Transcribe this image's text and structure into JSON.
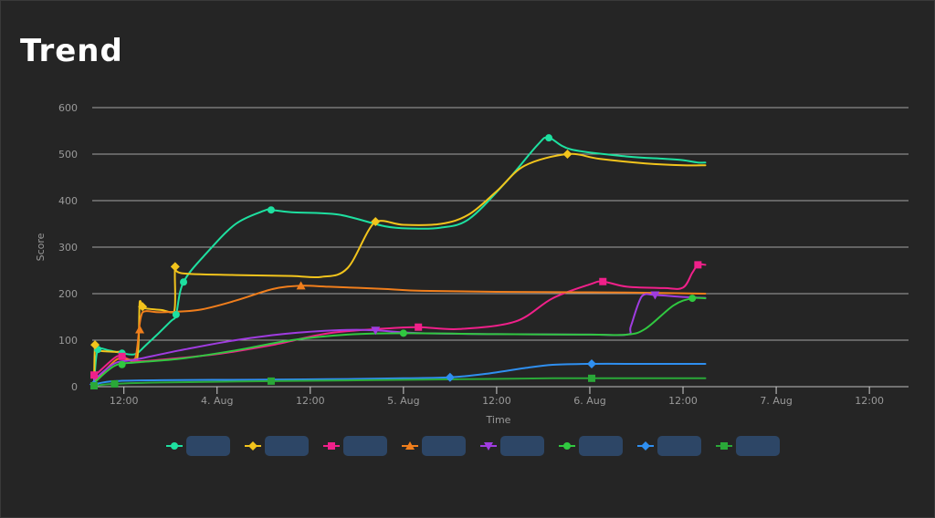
{
  "page": {
    "title": "Trend"
  },
  "chart_data": {
    "type": "line",
    "title": "Trend",
    "xlabel": "Time",
    "ylabel": "Score",
    "ylim": [
      0,
      600
    ],
    "yticks": [
      0,
      100,
      200,
      300,
      400,
      500,
      600
    ],
    "xlim": [
      3.33,
      7.71
    ],
    "xticks": [
      {
        "x": 3.5,
        "label": "12:00"
      },
      {
        "x": 4.0,
        "label": "4. Aug"
      },
      {
        "x": 4.5,
        "label": "12:00"
      },
      {
        "x": 5.0,
        "label": "5. Aug"
      },
      {
        "x": 5.5,
        "label": "12:00"
      },
      {
        "x": 6.0,
        "label": "6. Aug"
      },
      {
        "x": 6.5,
        "label": "12:00"
      },
      {
        "x": 7.0,
        "label": "7. Aug"
      },
      {
        "x": 7.5,
        "label": "12:00"
      }
    ],
    "grid": true,
    "legend_position": "bottom",
    "series": [
      {
        "color": "#1ee0a0",
        "marker": "circle",
        "points": [
          [
            3.34,
            5
          ],
          [
            3.36,
            80
          ],
          [
            3.42,
            78
          ],
          [
            3.49,
            72
          ],
          [
            3.56,
            70
          ],
          [
            3.62,
            90
          ],
          [
            3.75,
            140
          ],
          [
            3.78,
            155
          ],
          [
            3.82,
            225
          ],
          [
            3.95,
            290
          ],
          [
            4.1,
            350
          ],
          [
            4.25,
            378
          ],
          [
            4.29,
            380
          ],
          [
            4.4,
            375
          ],
          [
            4.65,
            370
          ],
          [
            4.9,
            345
          ],
          [
            5.05,
            340
          ],
          [
            5.2,
            342
          ],
          [
            5.35,
            360
          ],
          [
            5.55,
            440
          ],
          [
            5.72,
            520
          ],
          [
            5.78,
            535
          ],
          [
            5.9,
            510
          ],
          [
            6.2,
            495
          ],
          [
            6.4,
            490
          ],
          [
            6.5,
            487
          ],
          [
            6.58,
            482
          ],
          [
            6.62,
            482
          ]
        ],
        "marker_x": [
          3.36,
          3.49,
          3.78,
          3.82,
          4.29,
          5.78
        ]
      },
      {
        "color": "#f2c41c",
        "marker": "diamond",
        "points": [
          [
            3.34,
            5
          ],
          [
            3.345,
            90
          ],
          [
            3.36,
            78
          ],
          [
            3.45,
            75
          ],
          [
            3.49,
            74
          ],
          [
            3.5,
            60
          ],
          [
            3.57,
            58
          ],
          [
            3.585,
            183
          ],
          [
            3.6,
            172
          ],
          [
            3.62,
            168
          ],
          [
            3.7,
            165
          ],
          [
            3.77,
            162
          ],
          [
            3.775,
            258
          ],
          [
            3.81,
            244
          ],
          [
            4.1,
            240
          ],
          [
            4.4,
            238
          ],
          [
            4.56,
            236
          ],
          [
            4.7,
            255
          ],
          [
            4.85,
            355
          ],
          [
            5.0,
            348
          ],
          [
            5.2,
            350
          ],
          [
            5.35,
            370
          ],
          [
            5.5,
            420
          ],
          [
            5.65,
            475
          ],
          [
            5.88,
            500
          ],
          [
            6.05,
            490
          ],
          [
            6.3,
            480
          ],
          [
            6.5,
            476
          ],
          [
            6.62,
            476
          ]
        ],
        "marker_x": [
          3.345,
          3.6,
          3.775,
          4.85,
          5.88
        ]
      },
      {
        "color": "#f0208a",
        "marker": "square",
        "points": [
          [
            3.34,
            25
          ],
          [
            3.36,
            30
          ],
          [
            3.45,
            62
          ],
          [
            3.49,
            65
          ],
          [
            3.56,
            55
          ],
          [
            3.7,
            58
          ],
          [
            4.0,
            70
          ],
          [
            4.3,
            90
          ],
          [
            4.6,
            115
          ],
          [
            4.9,
            125
          ],
          [
            5.08,
            128
          ],
          [
            5.3,
            124
          ],
          [
            5.6,
            140
          ],
          [
            5.8,
            190
          ],
          [
            6.0,
            220
          ],
          [
            6.07,
            226
          ],
          [
            6.2,
            215
          ],
          [
            6.4,
            212
          ],
          [
            6.5,
            213
          ],
          [
            6.55,
            245
          ],
          [
            6.58,
            262
          ],
          [
            6.62,
            262
          ]
        ],
        "marker_x": [
          3.34,
          3.49,
          5.08,
          6.07,
          6.58
        ]
      },
      {
        "color": "#f07e1c",
        "marker": "triangle",
        "points": [
          [
            3.34,
            10
          ],
          [
            3.45,
            55
          ],
          [
            3.49,
            60
          ],
          [
            3.56,
            60
          ],
          [
            3.6,
            160
          ],
          [
            3.7,
            160
          ],
          [
            3.9,
            165
          ],
          [
            4.1,
            185
          ],
          [
            4.3,
            210
          ],
          [
            4.45,
            217
          ],
          [
            4.6,
            215
          ],
          [
            4.9,
            210
          ],
          [
            5.1,
            206
          ],
          [
            5.5,
            204
          ],
          [
            6.0,
            203
          ],
          [
            6.3,
            202
          ],
          [
            6.62,
            200
          ]
        ],
        "marker_x": [
          3.585,
          4.45
        ]
      },
      {
        "color": "#a03ce0",
        "marker": "triangle-down",
        "points": [
          [
            3.34,
            15
          ],
          [
            3.45,
            50
          ],
          [
            3.56,
            58
          ],
          [
            3.8,
            78
          ],
          [
            4.1,
            100
          ],
          [
            4.4,
            115
          ],
          [
            4.7,
            122
          ],
          [
            4.85,
            121
          ],
          [
            5.1,
            115
          ],
          [
            5.5,
            113
          ],
          [
            6.0,
            112
          ],
          [
            6.2,
            112
          ],
          [
            6.22,
            130
          ],
          [
            6.28,
            195
          ],
          [
            6.35,
            197
          ],
          [
            6.5,
            193
          ],
          [
            6.62,
            191
          ]
        ],
        "marker_x": [
          4.85,
          6.35
        ]
      },
      {
        "color": "#30c840",
        "marker": "circle",
        "points": [
          [
            3.34,
            8
          ],
          [
            3.45,
            45
          ],
          [
            3.56,
            52
          ],
          [
            3.8,
            60
          ],
          [
            4.1,
            78
          ],
          [
            4.4,
            100
          ],
          [
            4.7,
            112
          ],
          [
            5.0,
            115
          ],
          [
            5.5,
            113
          ],
          [
            6.0,
            112
          ],
          [
            6.2,
            112
          ],
          [
            6.3,
            125
          ],
          [
            6.45,
            175
          ],
          [
            6.55,
            190
          ],
          [
            6.62,
            190
          ]
        ],
        "marker_x": [
          3.49,
          5.0,
          6.55
        ]
      },
      {
        "color": "#2f8ff0",
        "marker": "diamond",
        "points": [
          [
            3.34,
            5
          ],
          [
            3.45,
            12
          ],
          [
            3.7,
            14
          ],
          [
            4.2,
            15
          ],
          [
            4.6,
            16
          ],
          [
            5.0,
            18
          ],
          [
            5.25,
            20
          ],
          [
            5.45,
            28
          ],
          [
            5.65,
            40
          ],
          [
            5.8,
            47
          ],
          [
            6.0,
            49
          ],
          [
            6.3,
            49
          ],
          [
            6.62,
            49
          ]
        ],
        "marker_x": [
          3.34,
          5.25,
          6.01
        ]
      },
      {
        "color": "#2aa838",
        "marker": "square",
        "points": [
          [
            3.34,
            2
          ],
          [
            3.45,
            6
          ],
          [
            3.7,
            9
          ],
          [
            4.3,
            12
          ],
          [
            4.8,
            14
          ],
          [
            5.3,
            16
          ],
          [
            5.8,
            18
          ],
          [
            6.2,
            18
          ],
          [
            6.62,
            18
          ]
        ],
        "marker_x": [
          3.34,
          3.45,
          4.29,
          6.01
        ]
      }
    ]
  }
}
